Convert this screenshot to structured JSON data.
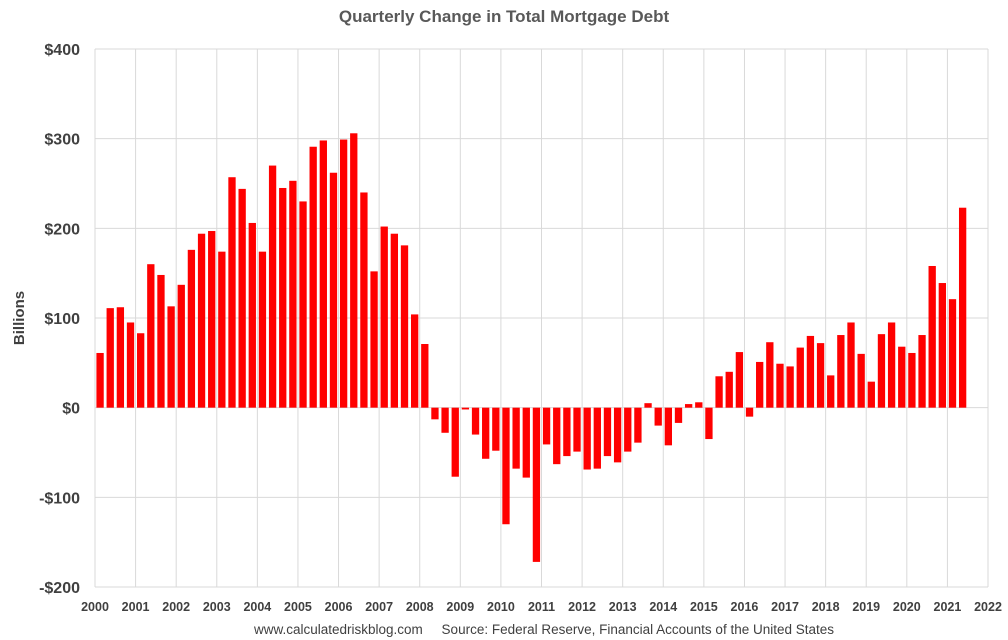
{
  "chart_data": {
    "type": "bar",
    "title": "Quarterly Change in Total Mortgage Debt",
    "ylabel": "Billions",
    "xlabel": "",
    "ylim": [
      -200,
      400
    ],
    "yticks": [
      400,
      300,
      200,
      100,
      0,
      -100,
      -200
    ],
    "ytick_labels": [
      "$400",
      "$300",
      "$200",
      "$100",
      "$0",
      "-$100",
      "-$200"
    ],
    "xlim": [
      2000,
      2022
    ],
    "xticks": [
      2000,
      2001,
      2002,
      2003,
      2004,
      2005,
      2006,
      2007,
      2008,
      2009,
      2010,
      2011,
      2012,
      2013,
      2014,
      2015,
      2016,
      2017,
      2018,
      2019,
      2020,
      2021,
      2022
    ],
    "xtick_labels": [
      "2000",
      "2001",
      "2002",
      "2003",
      "2004",
      "2005",
      "2006",
      "2007",
      "2008",
      "2009",
      "2010",
      "2011",
      "2012",
      "2013",
      "2014",
      "2015",
      "2016",
      "2017",
      "2018",
      "2019",
      "2020",
      "2021",
      "2022"
    ],
    "grid": true,
    "bar_color": "#ff0000",
    "quarters_start": "2000 Q1",
    "values": [
      61,
      111,
      112,
      95,
      83,
      160,
      148,
      113,
      137,
      176,
      194,
      197,
      174,
      257,
      244,
      206,
      174,
      270,
      245,
      253,
      230,
      291,
      298,
      262,
      299,
      306,
      240,
      152,
      202,
      194,
      181,
      104,
      71,
      -13,
      -28,
      -77,
      -2,
      -30,
      -57,
      -48,
      -130,
      -68,
      -78,
      -172,
      -41,
      -63,
      -54,
      -49,
      -69,
      -68,
      -54,
      -61,
      -49,
      -39,
      5,
      -20,
      -42,
      -17,
      4,
      6,
      -35,
      35,
      40,
      62,
      -10,
      51,
      73,
      49,
      46,
      67,
      80,
      72,
      36,
      81,
      95,
      60,
      29,
      82,
      95,
      68,
      61,
      81,
      158,
      139,
      121,
      223
    ]
  },
  "footer": {
    "text": "www.calculatedriskblog.com     Source: Federal Reserve, Financial Accounts of the United States"
  }
}
